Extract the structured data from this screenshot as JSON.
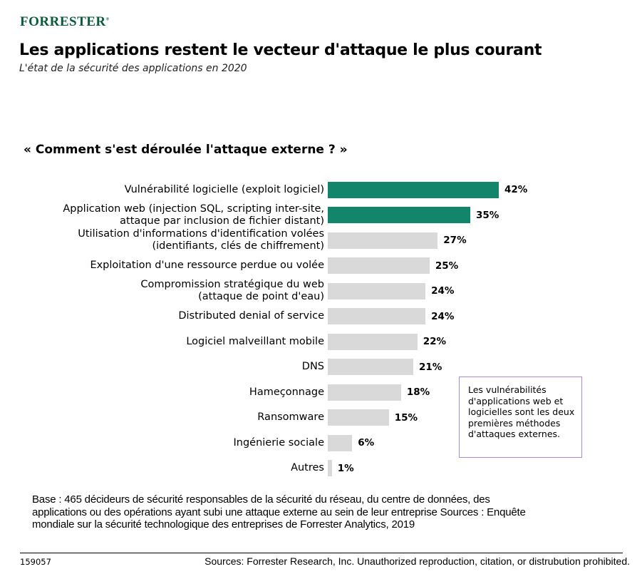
{
  "logo": "Forrester",
  "header": {
    "title": "Les applications restent le vecteur d'attaque le plus courant",
    "subtitle": "L'état de la sécurité des applications en 2020"
  },
  "chart_data": {
    "type": "bar",
    "orientation": "horizontal",
    "title": "« Comment s'est déroulée l'attaque externe ? »",
    "categories": [
      "Vulnérabilité logicielle (exploit logiciel)",
      "Application web (injection SQL, scripting inter-site,\nattaque par inclusion de fichier distant)",
      "Utilisation d'informations d'identification volées\n(identifiants, clés de chiffrement)",
      "Exploitation d'une ressource perdue ou volée",
      "Compromission stratégique du web\n(attaque de point d'eau)",
      "Distributed denial of service",
      "Logiciel malveillant mobile",
      "DNS",
      "Hameçonnage",
      "Ransomware",
      "Ingénierie sociale",
      "Autres"
    ],
    "values": [
      42,
      35,
      27,
      25,
      24,
      24,
      22,
      21,
      18,
      15,
      6,
      1
    ],
    "value_labels": [
      "42%",
      "35%",
      "27%",
      "25%",
      "24%",
      "24%",
      "22%",
      "21%",
      "18%",
      "15%",
      "6%",
      "1%"
    ],
    "highlight_count": 2,
    "colors": {
      "highlight": "#13856a",
      "default": "#d9d9d9"
    },
    "grid": false
  },
  "note": "Les vulnérabilités d'applications web et logicielles sont les deux premières méthodes d'attaques externes.",
  "footer": {
    "base": "Base : 465 décideurs de sécurité responsables de la sécurité du réseau, du centre de données, des applications ou des opérations ayant subi une attaque externe au sein de leur entreprise Sources : Enquête mondiale sur la sécurité technologique des entreprises de Forrester Analytics, 2019",
    "code": "159057",
    "copyright": "Sources: Forrester Research, Inc. Unauthorized reproduction, citation, or distrubution prohibited."
  }
}
